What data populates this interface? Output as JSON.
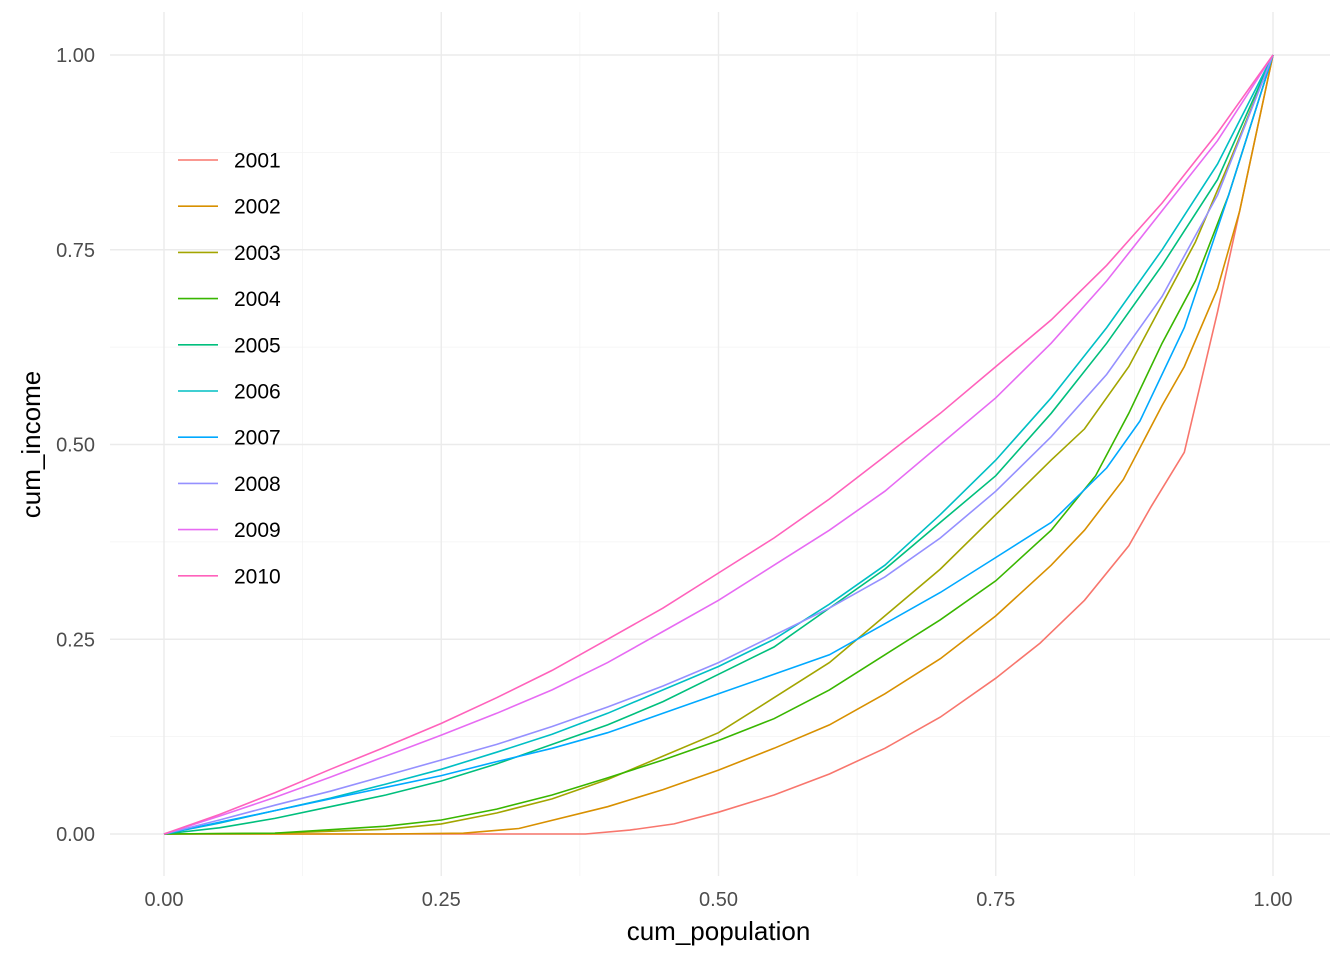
{
  "chart_data": {
    "type": "line",
    "xlabel": "cum_population",
    "ylabel": "cum_income",
    "xlim": [
      0,
      1
    ],
    "ylim": [
      0,
      1
    ],
    "x_ticks": [
      "0.00",
      "0.25",
      "0.50",
      "0.75",
      "1.00"
    ],
    "y_ticks": [
      "0.00",
      "0.25",
      "0.50",
      "0.75",
      "1.00"
    ],
    "grid": true,
    "legend_position": "top-left inside",
    "series": [
      {
        "name": "2001",
        "color": "#F8766D",
        "x": [
          0,
          0.25,
          0.38,
          0.42,
          0.46,
          0.5,
          0.55,
          0.6,
          0.65,
          0.7,
          0.75,
          0.79,
          0.83,
          0.87,
          0.89,
          0.92,
          0.95,
          0.97,
          1.0
        ],
        "y": [
          0,
          0,
          0,
          0.005,
          0.013,
          0.028,
          0.05,
          0.077,
          0.11,
          0.15,
          0.2,
          0.245,
          0.3,
          0.37,
          0.42,
          0.49,
          0.67,
          0.8,
          1.0
        ]
      },
      {
        "name": "2002",
        "color": "#D89000",
        "x": [
          0,
          0.2,
          0.27,
          0.32,
          0.4,
          0.45,
          0.5,
          0.55,
          0.6,
          0.65,
          0.7,
          0.75,
          0.8,
          0.83,
          0.865,
          0.9,
          0.92,
          0.95,
          0.97,
          1.0
        ],
        "y": [
          0,
          0,
          0.001,
          0.007,
          0.035,
          0.057,
          0.082,
          0.11,
          0.14,
          0.18,
          0.225,
          0.28,
          0.345,
          0.39,
          0.455,
          0.55,
          0.6,
          0.7,
          0.8,
          1.0
        ]
      },
      {
        "name": "2003",
        "color": "#A3A500",
        "x": [
          0,
          0.1,
          0.2,
          0.25,
          0.3,
          0.35,
          0.4,
          0.45,
          0.5,
          0.55,
          0.6,
          0.65,
          0.7,
          0.75,
          0.8,
          0.83,
          0.87,
          0.9,
          0.93,
          0.96,
          1.0
        ],
        "y": [
          0,
          0.001,
          0.006,
          0.013,
          0.027,
          0.045,
          0.07,
          0.1,
          0.13,
          0.175,
          0.22,
          0.28,
          0.34,
          0.41,
          0.48,
          0.52,
          0.6,
          0.68,
          0.76,
          0.86,
          1.0
        ]
      },
      {
        "name": "2004",
        "color": "#39B600",
        "x": [
          0,
          0.1,
          0.2,
          0.25,
          0.3,
          0.35,
          0.4,
          0.45,
          0.5,
          0.55,
          0.6,
          0.65,
          0.7,
          0.75,
          0.8,
          0.84,
          0.87,
          0.9,
          0.93,
          0.96,
          1.0
        ],
        "y": [
          0,
          0.001,
          0.01,
          0.018,
          0.032,
          0.05,
          0.072,
          0.095,
          0.12,
          0.148,
          0.185,
          0.23,
          0.275,
          0.325,
          0.39,
          0.46,
          0.54,
          0.63,
          0.71,
          0.82,
          1.0
        ]
      },
      {
        "name": "2005",
        "color": "#00BF7D",
        "x": [
          0,
          0.05,
          0.1,
          0.15,
          0.2,
          0.25,
          0.3,
          0.35,
          0.4,
          0.45,
          0.5,
          0.55,
          0.6,
          0.65,
          0.7,
          0.75,
          0.8,
          0.85,
          0.9,
          0.95,
          1.0
        ],
        "y": [
          0,
          0.008,
          0.02,
          0.035,
          0.05,
          0.068,
          0.09,
          0.115,
          0.14,
          0.17,
          0.205,
          0.24,
          0.29,
          0.34,
          0.4,
          0.46,
          0.54,
          0.63,
          0.73,
          0.84,
          1.0
        ]
      },
      {
        "name": "2006",
        "color": "#00BFC4",
        "x": [
          0,
          0.05,
          0.1,
          0.15,
          0.2,
          0.25,
          0.3,
          0.35,
          0.4,
          0.45,
          0.5,
          0.55,
          0.6,
          0.65,
          0.7,
          0.75,
          0.8,
          0.85,
          0.9,
          0.95,
          1.0
        ],
        "y": [
          0,
          0.014,
          0.03,
          0.046,
          0.064,
          0.083,
          0.105,
          0.128,
          0.155,
          0.185,
          0.215,
          0.25,
          0.295,
          0.345,
          0.41,
          0.48,
          0.56,
          0.65,
          0.75,
          0.86,
          1.0
        ]
      },
      {
        "name": "2007",
        "color": "#00A9FF",
        "x": [
          0,
          0.05,
          0.1,
          0.15,
          0.2,
          0.25,
          0.3,
          0.35,
          0.4,
          0.45,
          0.5,
          0.55,
          0.6,
          0.65,
          0.7,
          0.75,
          0.8,
          0.85,
          0.88,
          0.92,
          0.96,
          1.0
        ],
        "y": [
          0,
          0.015,
          0.03,
          0.045,
          0.06,
          0.075,
          0.093,
          0.11,
          0.13,
          0.155,
          0.18,
          0.205,
          0.23,
          0.27,
          0.31,
          0.355,
          0.4,
          0.47,
          0.53,
          0.65,
          0.82,
          1.0
        ]
      },
      {
        "name": "2008",
        "color": "#9590FF",
        "x": [
          0,
          0.05,
          0.1,
          0.15,
          0.2,
          0.25,
          0.3,
          0.35,
          0.4,
          0.45,
          0.5,
          0.55,
          0.6,
          0.65,
          0.7,
          0.75,
          0.8,
          0.85,
          0.9,
          0.95,
          1.0
        ],
        "y": [
          0,
          0.018,
          0.037,
          0.055,
          0.075,
          0.095,
          0.115,
          0.138,
          0.163,
          0.19,
          0.22,
          0.255,
          0.29,
          0.33,
          0.38,
          0.44,
          0.51,
          0.59,
          0.69,
          0.82,
          1.0
        ]
      },
      {
        "name": "2009",
        "color": "#E76BF3",
        "x": [
          0,
          0.05,
          0.1,
          0.15,
          0.2,
          0.25,
          0.3,
          0.35,
          0.4,
          0.45,
          0.5,
          0.55,
          0.6,
          0.65,
          0.7,
          0.75,
          0.8,
          0.85,
          0.9,
          0.95,
          1.0
        ],
        "y": [
          0,
          0.023,
          0.047,
          0.073,
          0.1,
          0.127,
          0.155,
          0.185,
          0.22,
          0.26,
          0.3,
          0.345,
          0.39,
          0.44,
          0.5,
          0.56,
          0.63,
          0.71,
          0.8,
          0.89,
          1.0
        ]
      },
      {
        "name": "2010",
        "color": "#FF62BC",
        "x": [
          0,
          0.05,
          0.1,
          0.15,
          0.2,
          0.25,
          0.3,
          0.35,
          0.4,
          0.45,
          0.5,
          0.55,
          0.6,
          0.65,
          0.7,
          0.75,
          0.8,
          0.85,
          0.9,
          0.95,
          1.0
        ],
        "y": [
          0,
          0.025,
          0.053,
          0.083,
          0.112,
          0.142,
          0.175,
          0.21,
          0.25,
          0.29,
          0.335,
          0.38,
          0.43,
          0.485,
          0.54,
          0.6,
          0.66,
          0.73,
          0.81,
          0.9,
          1.0
        ]
      }
    ]
  }
}
